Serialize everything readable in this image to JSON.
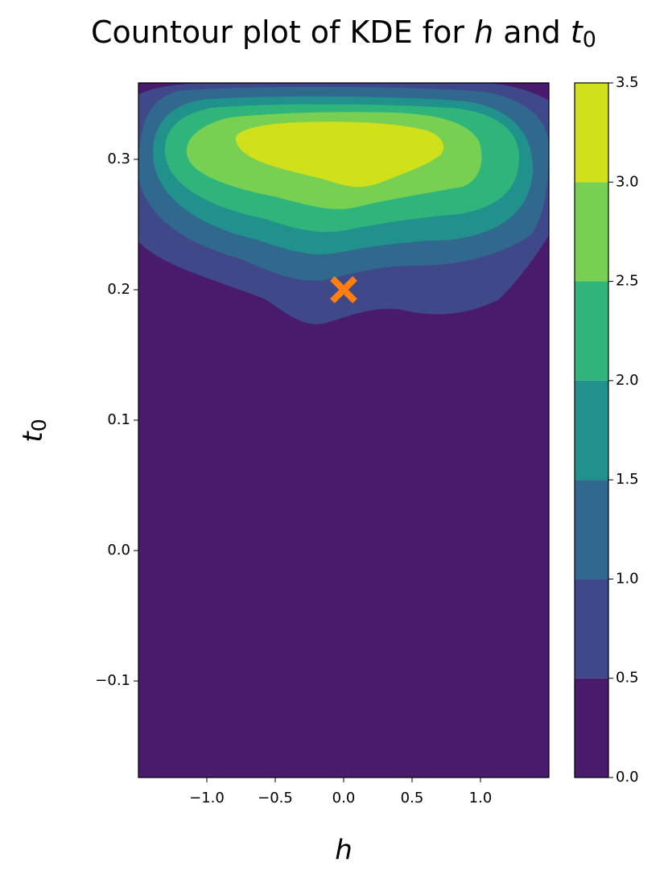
{
  "chart_data": {
    "type": "contourf",
    "title": [
      "Countour plot of KDE for ",
      "h",
      " and ",
      "t",
      "0"
    ],
    "xlabel": "h",
    "ylabel": [
      "t",
      "0"
    ],
    "xlim": [
      -1.5,
      1.5
    ],
    "ylim": [
      -0.174,
      0.3586
    ],
    "xticks": [
      {
        "value": -1,
        "label": "−1.0"
      },
      {
        "value": -0.5,
        "label": "−0.5"
      },
      {
        "value": 0,
        "label": "0.0"
      },
      {
        "value": 0.5,
        "label": "0.5"
      },
      {
        "value": 1,
        "label": "1.0"
      }
    ],
    "yticks": [
      {
        "value": -0.1,
        "label": "−0.1"
      },
      {
        "value": 0,
        "label": "0.0"
      },
      {
        "value": 0.1,
        "label": "0.1"
      },
      {
        "value": 0.2,
        "label": "0.2"
      },
      {
        "value": 0.3,
        "label": "0.3"
      }
    ],
    "levels": [
      {
        "value": 0,
        "label": "0.0"
      },
      {
        "value": 0.5,
        "label": "0.5"
      },
      {
        "value": 1,
        "label": "1.0"
      },
      {
        "value": 1.5,
        "label": "1.5"
      },
      {
        "value": 2,
        "label": "2.0"
      },
      {
        "value": 2.5,
        "label": "2.5"
      },
      {
        "value": 3,
        "label": "3.0"
      },
      {
        "value": 3.5,
        "label": "3.5"
      }
    ],
    "colors": [
      "#481b6d",
      "#3f4889",
      "#31688e",
      "#21918c",
      "#2fb47c",
      "#77d052",
      "#d0e11c"
    ],
    "marker": {
      "x": 0,
      "y": 0.2,
      "color": "#ff7f0e"
    }
  }
}
